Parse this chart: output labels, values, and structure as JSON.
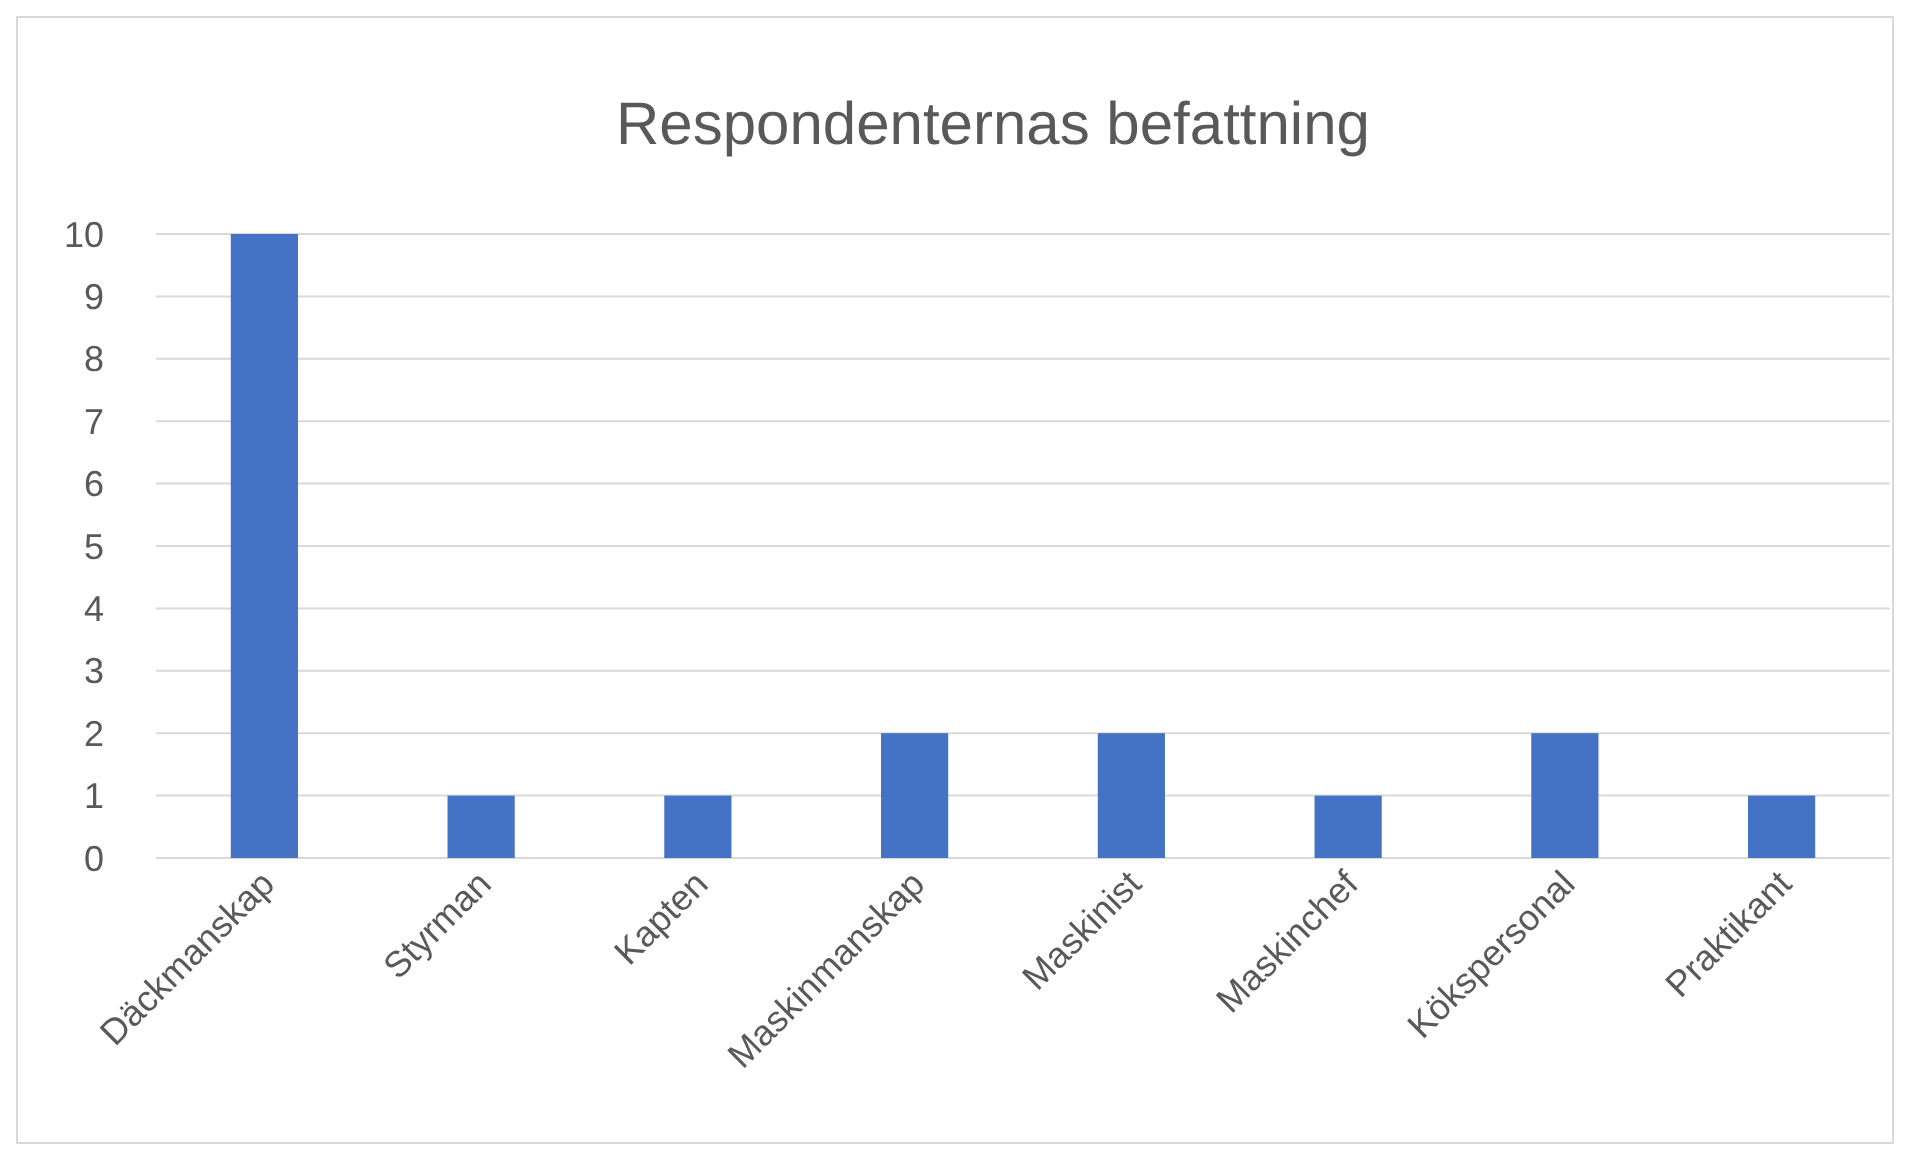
{
  "chart_data": {
    "type": "bar",
    "title": "Respondenternas befattning",
    "categories": [
      "Däckmanskap",
      "Styrman",
      "Kapten",
      "Maskinmanskap",
      "Maskinist",
      "Maskinchef",
      "Kökspersonal",
      "Praktikant"
    ],
    "values": [
      10,
      1,
      1,
      2,
      2,
      1,
      2,
      1
    ],
    "color": "#4472c4",
    "ylim": [
      0,
      10
    ],
    "yticks": [
      0,
      1,
      2,
      3,
      4,
      5,
      6,
      7,
      8,
      9,
      10
    ],
    "grid": "y"
  }
}
